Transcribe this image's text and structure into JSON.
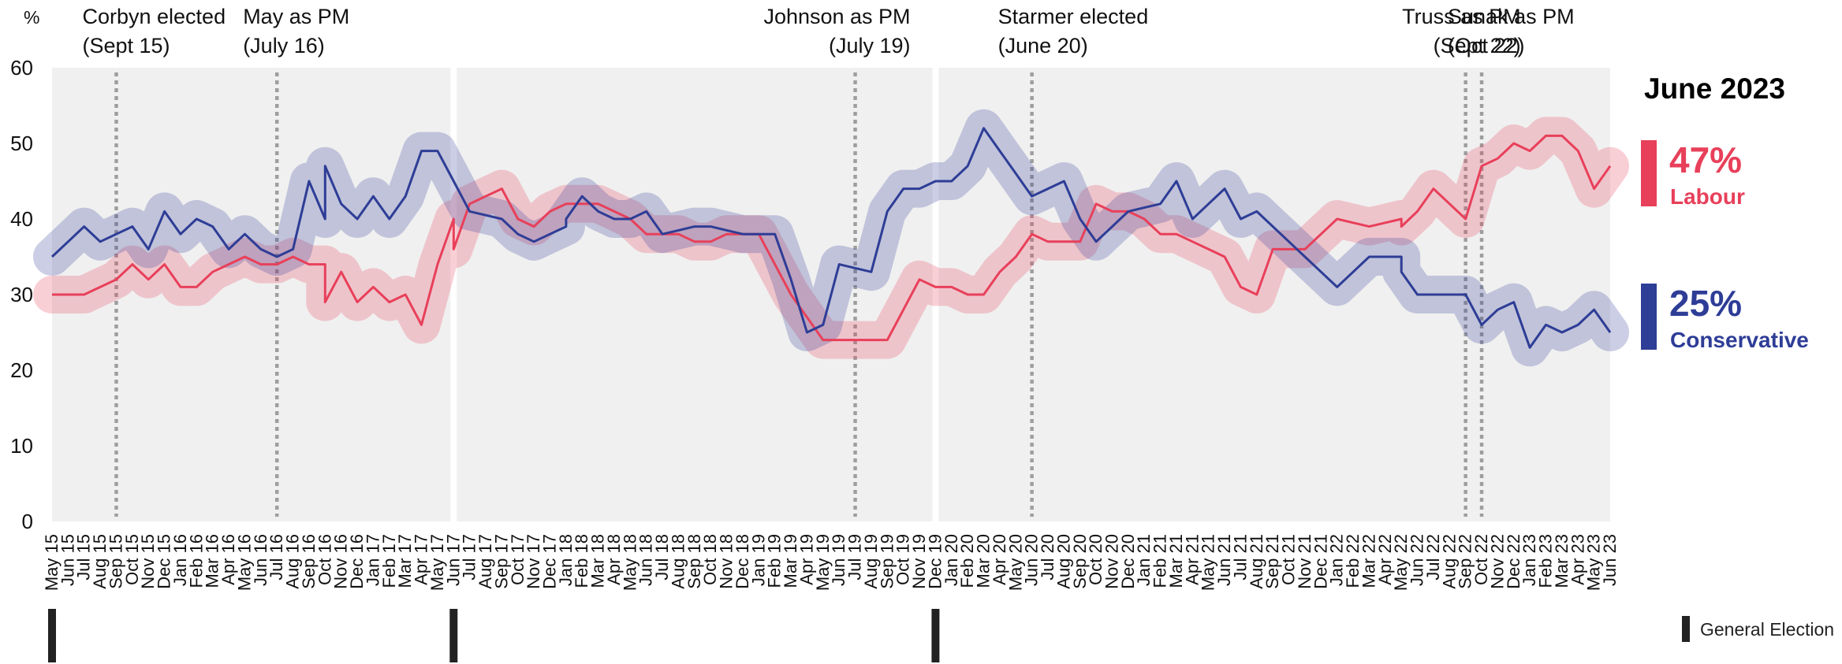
{
  "chart_data": {
    "type": "line",
    "ylabel": "%",
    "ylim": [
      0,
      60
    ],
    "yticks": [
      0,
      10,
      20,
      30,
      40,
      50,
      60
    ],
    "x_months": [
      "2015-05",
      "2023-06"
    ],
    "x_ticks": [
      "May 15",
      "Jun 15",
      "Jul 15",
      "Aug 15",
      "Sep 15",
      "Oct 15",
      "Nov 15",
      "Dec 15",
      "Jan 16",
      "Feb 16",
      "Mar 16",
      "Apr 16",
      "May 16",
      "Jun 16",
      "Jul 16",
      "Aug 16",
      "Sep 16",
      "Oct 16",
      "Nov 16",
      "Dec 16",
      "Jan 17",
      "Feb 17",
      "Mar 17",
      "Apr 17",
      "May 17",
      "Jun 17",
      "Jul 17",
      "Aug 17",
      "Sep 17",
      "Oct 17",
      "Nov 17",
      "Dec 17",
      "Jan 18",
      "Feb 18",
      "Mar 18",
      "Apr 18",
      "May 18",
      "Jun 18",
      "Jul 18",
      "Aug 18",
      "Sep 18",
      "Oct 18",
      "Nov 18",
      "Dec 18",
      "Jan 19",
      "Feb 19",
      "Mar 19",
      "Apr 19",
      "May 19",
      "Jun 19",
      "Jul 19",
      "Aug 19",
      "Sep 19",
      "Oct 19",
      "Nov 19",
      "Dec 19",
      "Jan 20",
      "Feb 20",
      "Mar 20",
      "Apr 20",
      "May 20",
      "Jun 20",
      "Jul 20",
      "Aug 20",
      "Sep 20",
      "Oct 20",
      "Nov 20",
      "Dec 20",
      "Jan 21",
      "Feb 21",
      "Mar 21",
      "Apr 21",
      "May 21",
      "Jun 21",
      "Jul 21",
      "Aug 21",
      "Sep 21",
      "Oct 21",
      "Nov 21",
      "Dec 21",
      "Jan 22",
      "Feb 22",
      "Mar 22",
      "Apr 22",
      "May 22",
      "Jun 22",
      "Jul 22",
      "Aug 22",
      "Sep 22",
      "Oct 22",
      "Nov 22",
      "Dec 22",
      "Jan 23",
      "Feb 23",
      "Mar 23",
      "Apr 23",
      "May 23",
      "Jun 23"
    ],
    "series": [
      {
        "name": "Labour",
        "color": "#e8405a",
        "points": [
          [
            "May 15",
            30
          ],
          [
            "Jun 15",
            30
          ],
          [
            "Jul 15",
            30
          ],
          [
            "Aug 15",
            31
          ],
          [
            "Sep 15",
            32
          ],
          [
            "Oct 15",
            34
          ],
          [
            "Nov 15",
            32
          ],
          [
            "Dec 15",
            34
          ],
          [
            "Jan 16",
            31
          ],
          [
            "Feb 16",
            31
          ],
          [
            "Mar 16",
            33
          ],
          [
            "Apr 16",
            34
          ],
          [
            "May 16",
            35
          ],
          [
            "Jun 16",
            34
          ],
          [
            "Jul 16",
            34
          ],
          [
            "Aug 16",
            35
          ],
          [
            "Sep 16",
            34
          ],
          [
            "Oct 16",
            34
          ],
          [
            "Oct 16",
            29
          ],
          [
            "Nov 16",
            33
          ],
          [
            "Dec 16",
            29
          ],
          [
            "Jan 17",
            31
          ],
          [
            "Feb 17",
            29
          ],
          [
            "Mar 17",
            30
          ],
          [
            "Apr 17",
            26
          ],
          [
            "May 17",
            34
          ],
          [
            "Jun 17",
            40
          ],
          [
            "Jun 17",
            36
          ],
          [
            "Jul 17",
            42
          ],
          [
            "Aug 17",
            43
          ],
          [
            "Sep 17",
            44
          ],
          [
            "Oct 17",
            40
          ],
          [
            "Nov 17",
            39
          ],
          [
            "Dec 17",
            41
          ],
          [
            "Jan 18",
            42
          ],
          [
            "Feb 18",
            42
          ],
          [
            "Mar 18",
            42
          ],
          [
            "Apr 18",
            41
          ],
          [
            "May 18",
            40
          ],
          [
            "Jun 18",
            38
          ],
          [
            "Jul 18",
            38
          ],
          [
            "Aug 18",
            38
          ],
          [
            "Sep 18",
            37
          ],
          [
            "Oct 18",
            37
          ],
          [
            "Nov 18",
            38
          ],
          [
            "Dec 18",
            38
          ],
          [
            "Jan 19",
            38
          ],
          [
            "Feb 19",
            34
          ],
          [
            "Mar 19",
            30
          ],
          [
            "Apr 19",
            27
          ],
          [
            "May 19",
            24
          ],
          [
            "Jun 19",
            24
          ],
          [
            "Jul 19",
            24
          ],
          [
            "Aug 19",
            24
          ],
          [
            "Sep 19",
            24
          ],
          [
            "Oct 19",
            28
          ],
          [
            "Nov 19",
            32
          ],
          [
            "Dec 19",
            31
          ],
          [
            "Jan 20",
            31
          ],
          [
            "Feb 20",
            30
          ],
          [
            "Mar 20",
            30
          ],
          [
            "Apr 20",
            33
          ],
          [
            "May 20",
            35
          ],
          [
            "Jun 20",
            38
          ],
          [
            "Jul 20",
            37
          ],
          [
            "Aug 20",
            37
          ],
          [
            "Sep 20",
            37
          ],
          [
            "Oct 20",
            42
          ],
          [
            "Nov 20",
            41
          ],
          [
            "Dec 20",
            41
          ],
          [
            "Jan 21",
            40
          ],
          [
            "Feb 21",
            38
          ],
          [
            "Mar 21",
            38
          ],
          [
            "Apr 21",
            37
          ],
          [
            "May 21",
            36
          ],
          [
            "Jun 21",
            35
          ],
          [
            "Jul 21",
            31
          ],
          [
            "Aug 21",
            30
          ],
          [
            "Sep 21",
            36
          ],
          [
            "Oct 21",
            36
          ],
          [
            "Nov 21",
            36
          ],
          [
            "Dec 21",
            38
          ],
          [
            "Jan 22",
            40
          ],
          [
            "Feb 22",
            39.5
          ],
          [
            "Mar 22",
            39
          ],
          [
            "Apr 22",
            39.5
          ],
          [
            "May 22",
            40
          ],
          [
            "May 22",
            39
          ],
          [
            "Jun 22",
            41
          ],
          [
            "Jul 22",
            44
          ],
          [
            "Aug 22",
            42
          ],
          [
            "Sep 22",
            40
          ],
          [
            "Oct 22",
            47
          ],
          [
            "Nov 22",
            48
          ],
          [
            "Dec 22",
            50
          ],
          [
            "Jan 23",
            49
          ],
          [
            "Feb 23",
            51
          ],
          [
            "Mar 23",
            51
          ],
          [
            "Apr 23",
            49
          ],
          [
            "May 23",
            44
          ],
          [
            "Jun 23",
            47
          ]
        ]
      },
      {
        "name": "Conservative",
        "color": "#2e3d96",
        "points": [
          [
            "May 15",
            35
          ],
          [
            "Jun 15",
            37
          ],
          [
            "Jul 15",
            39
          ],
          [
            "Aug 15",
            37
          ],
          [
            "Sep 15",
            38
          ],
          [
            "Oct 15",
            39
          ],
          [
            "Nov 15",
            36
          ],
          [
            "Dec 15",
            41
          ],
          [
            "Jan 16",
            38
          ],
          [
            "Feb 16",
            40
          ],
          [
            "Mar 16",
            39
          ],
          [
            "Apr 16",
            36
          ],
          [
            "May 16",
            38
          ],
          [
            "Jun 16",
            36
          ],
          [
            "Jul 16",
            35
          ],
          [
            "Aug 16",
            36
          ],
          [
            "Sep 16",
            45
          ],
          [
            "Oct 16",
            40
          ],
          [
            "Oct 16",
            47
          ],
          [
            "Nov 16",
            42
          ],
          [
            "Dec 16",
            40
          ],
          [
            "Jan 17",
            43
          ],
          [
            "Feb 17",
            40
          ],
          [
            "Mar 17",
            43
          ],
          [
            "Apr 17",
            49
          ],
          [
            "May 17",
            49
          ],
          [
            "Jun 17",
            45
          ],
          [
            "Jul 17",
            41
          ],
          [
            "Aug 17",
            40.5
          ],
          [
            "Sep 17",
            40
          ],
          [
            "Oct 17",
            38
          ],
          [
            "Nov 17",
            37
          ],
          [
            "Dec 17",
            38
          ],
          [
            "Jan 18",
            39
          ],
          [
            "Jan 18",
            40
          ],
          [
            "Feb 18",
            43
          ],
          [
            "Mar 18",
            41
          ],
          [
            "Apr 18",
            40
          ],
          [
            "May 18",
            40
          ],
          [
            "Jun 18",
            41
          ],
          [
            "Jul 18",
            38
          ],
          [
            "Aug 18",
            38.5
          ],
          [
            "Sep 18",
            39
          ],
          [
            "Oct 18",
            39
          ],
          [
            "Nov 18",
            38.5
          ],
          [
            "Dec 18",
            38
          ],
          [
            "Jan 19",
            38
          ],
          [
            "Feb 19",
            38
          ],
          [
            "Mar 19",
            32
          ],
          [
            "Apr 19",
            25
          ],
          [
            "May 19",
            26
          ],
          [
            "Jun 19",
            34
          ],
          [
            "Jul 19",
            33.5
          ],
          [
            "Aug 19",
            33
          ],
          [
            "Sep 19",
            41
          ],
          [
            "Oct 19",
            44
          ],
          [
            "Nov 19",
            44
          ],
          [
            "Dec 19",
            45
          ],
          [
            "Jan 20",
            45
          ],
          [
            "Feb 20",
            47
          ],
          [
            "Mar 20",
            52
          ],
          [
            "Apr 20",
            49
          ],
          [
            "May 20",
            46
          ],
          [
            "Jun 20",
            43
          ],
          [
            "Jul 20",
            44
          ],
          [
            "Aug 20",
            45
          ],
          [
            "Sep 20",
            40
          ],
          [
            "Oct 20",
            37
          ],
          [
            "Nov 20",
            39
          ],
          [
            "Dec 20",
            41
          ],
          [
            "Jan 21",
            41.5
          ],
          [
            "Feb 21",
            42
          ],
          [
            "Mar 21",
            45
          ],
          [
            "Apr 21",
            40
          ],
          [
            "May 21",
            42
          ],
          [
            "Jun 21",
            44
          ],
          [
            "Jul 21",
            40
          ],
          [
            "Aug 21",
            41
          ],
          [
            "Sep 21",
            39
          ],
          [
            "Oct 21",
            37
          ],
          [
            "Nov 21",
            35
          ],
          [
            "Dec 21",
            33
          ],
          [
            "Jan 22",
            31
          ],
          [
            "Feb 22",
            33
          ],
          [
            "Mar 22",
            35
          ],
          [
            "Apr 22",
            35
          ],
          [
            "May 22",
            35
          ],
          [
            "May 22",
            33
          ],
          [
            "Jun 22",
            30
          ],
          [
            "Jul 22",
            30
          ],
          [
            "Aug 22",
            30
          ],
          [
            "Sep 22",
            30
          ],
          [
            "Oct 22",
            26
          ],
          [
            "Nov 22",
            28
          ],
          [
            "Dec 22",
            29
          ],
          [
            "Jan 23",
            23
          ],
          [
            "Feb 23",
            26
          ],
          [
            "Mar 23",
            25
          ],
          [
            "Apr 23",
            26
          ],
          [
            "May 23",
            28
          ],
          [
            "Jun 23",
            25
          ]
        ]
      }
    ],
    "events": [
      {
        "label": "Corbyn elected",
        "sub": "(Sept 15)",
        "month": "Sep 15",
        "align": "left"
      },
      {
        "label": "May as PM",
        "sub": "(July 16)",
        "month": "Jul 16",
        "align": "left"
      },
      {
        "label": "Johnson as PM",
        "sub": "(July 19)",
        "month": "Jul 19",
        "align": "right"
      },
      {
        "label": "Starmer elected",
        "sub": "(June 20)",
        "month": "Jun 20",
        "align": "left"
      },
      {
        "label": "Truss as PM",
        "sub": "(Sept 22)",
        "month": "Sep 22",
        "align": "right"
      },
      {
        "label": "Sunak as PM",
        "sub": "(Oct 22)",
        "month": "Oct 22",
        "align": "left"
      }
    ],
    "general_elections": [
      "May 15",
      "Jun 17",
      "Dec 19"
    ],
    "grid": false,
    "background": "#f0f0f0"
  },
  "side_panel": {
    "title": "June 2023",
    "labour_pct": "47%",
    "labour_label": "Labour",
    "conservative_pct": "25%",
    "conservative_label": "Conservative",
    "labour_color": "#e8405a",
    "conservative_color": "#2e3d96"
  },
  "legend": {
    "general_election_label": "General Election"
  }
}
